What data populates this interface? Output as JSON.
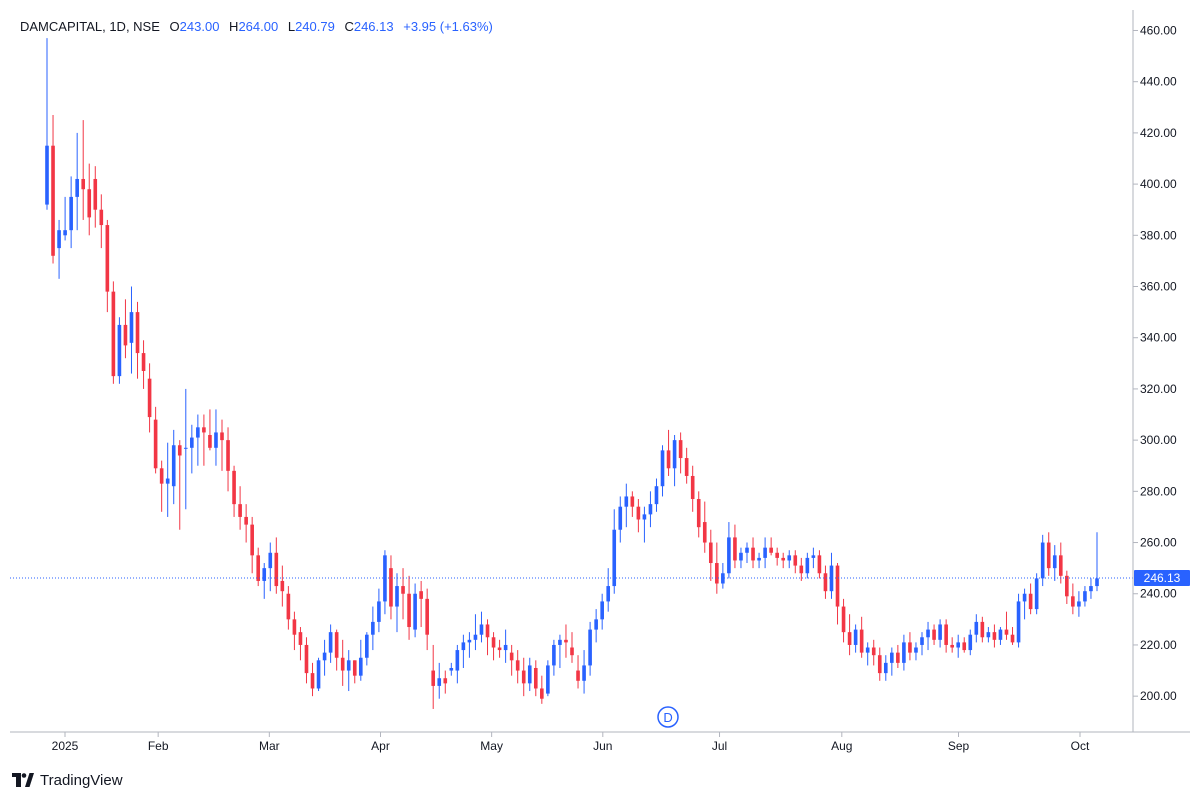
{
  "header": {
    "symbol": "DAMCAPITAL, 1D, NSE",
    "o_label": "O",
    "o_value": "243.00",
    "h_label": "H",
    "h_value": "264.00",
    "l_label": "L",
    "l_value": "240.79",
    "c_label": "C",
    "c_value": "246.13",
    "change": "+3.95 (+1.63%)"
  },
  "footer": {
    "brand": "TradingView",
    "logo_icon": "tradingview-logo-icon"
  },
  "event_marker": {
    "label": "D",
    "icon": "dividend-marker-icon"
  },
  "colors": {
    "up": "#2962ff",
    "down": "#f23645",
    "price_line": "#2962ff",
    "axis_text": "#131722",
    "grid": "#e0e3eb"
  },
  "chart_data": {
    "type": "candlestick",
    "ylim": [
      186,
      468
    ],
    "yticks": [
      "200.00",
      "220.00",
      "240.00",
      "260.00",
      "280.00",
      "300.00",
      "320.00",
      "340.00",
      "360.00",
      "380.00",
      "400.00",
      "420.00",
      "440.00",
      "460.00"
    ],
    "xticks": [
      "2025",
      "Feb",
      "Mar",
      "Apr",
      "May",
      "Jun",
      "Jul",
      "Aug",
      "Sep",
      "Oct"
    ],
    "last_price": 246.13,
    "last_price_label": "246.13",
    "ohlc": [
      [
        392,
        457,
        390,
        415
      ],
      [
        415,
        427,
        369,
        372
      ],
      [
        375,
        386,
        363,
        382
      ],
      [
        380,
        395,
        378,
        382
      ],
      [
        382,
        403,
        375,
        395
      ],
      [
        395,
        420,
        382,
        402
      ],
      [
        402,
        425,
        386,
        398
      ],
      [
        398,
        408,
        380,
        387
      ],
      [
        402,
        407,
        383,
        390
      ],
      [
        390,
        396,
        375,
        384
      ],
      [
        384,
        386,
        350,
        358
      ],
      [
        358,
        362,
        322,
        325
      ],
      [
        325,
        348,
        322,
        345
      ],
      [
        345,
        355,
        332,
        337
      ],
      [
        338,
        360,
        326,
        350
      ],
      [
        350,
        354,
        324,
        334
      ],
      [
        334,
        339,
        320,
        327
      ],
      [
        324,
        330,
        303,
        309
      ],
      [
        308,
        313,
        287,
        289
      ],
      [
        289,
        292,
        272,
        283
      ],
      [
        283,
        299,
        270,
        285
      ],
      [
        282,
        304,
        275,
        298
      ],
      [
        298,
        300,
        265,
        294
      ],
      [
        297,
        320,
        273,
        297
      ],
      [
        297,
        306,
        287,
        301
      ],
      [
        301,
        310,
        290,
        305
      ],
      [
        305,
        310,
        290,
        303
      ],
      [
        302,
        312,
        296,
        297
      ],
      [
        297,
        312,
        290,
        303
      ],
      [
        303,
        308,
        288,
        300
      ],
      [
        300,
        305,
        280,
        288
      ],
      [
        288,
        290,
        270,
        275
      ],
      [
        275,
        282,
        265,
        270
      ],
      [
        270,
        275,
        260,
        267
      ],
      [
        267,
        270,
        248,
        255
      ],
      [
        255,
        258,
        243,
        245
      ],
      [
        245,
        252,
        238,
        250
      ],
      [
        250,
        260,
        241,
        256
      ],
      [
        256,
        262,
        240,
        243
      ],
      [
        245,
        251,
        235,
        241
      ],
      [
        240,
        243,
        226,
        230
      ],
      [
        230,
        233,
        218,
        224
      ],
      [
        225,
        227,
        214,
        220
      ],
      [
        220,
        223,
        205,
        209
      ],
      [
        209,
        213,
        200,
        203
      ],
      [
        203,
        215,
        202,
        214
      ],
      [
        214,
        222,
        208,
        217
      ],
      [
        217,
        228,
        213,
        225
      ],
      [
        225,
        226,
        210,
        215
      ],
      [
        215,
        222,
        204,
        210
      ],
      [
        210,
        218,
        202,
        214
      ],
      [
        214,
        214,
        205,
        208
      ],
      [
        208,
        222,
        206,
        215
      ],
      [
        215,
        225,
        212,
        224
      ],
      [
        224,
        235,
        218,
        229
      ],
      [
        229,
        242,
        225,
        237
      ],
      [
        237,
        257,
        232,
        255
      ],
      [
        250,
        255,
        230,
        235
      ],
      [
        235,
        248,
        225,
        243
      ],
      [
        243,
        250,
        230,
        240
      ],
      [
        240,
        247,
        222,
        227
      ],
      [
        226,
        244,
        223,
        240
      ],
      [
        241,
        245,
        227,
        238
      ],
      [
        238,
        242,
        218,
        224
      ],
      [
        210,
        220,
        195,
        204
      ],
      [
        204,
        213,
        199,
        207
      ],
      [
        207,
        210,
        201,
        205
      ],
      [
        210,
        213,
        208,
        211
      ],
      [
        210,
        220,
        205,
        218
      ],
      [
        218,
        224,
        211,
        221
      ],
      [
        221,
        225,
        215,
        222
      ],
      [
        222,
        232,
        218,
        224
      ],
      [
        224,
        233,
        221,
        228
      ],
      [
        228,
        230,
        216,
        223
      ],
      [
        223,
        225,
        214,
        219
      ],
      [
        219,
        222,
        215,
        218
      ],
      [
        218,
        226,
        213,
        220
      ],
      [
        217,
        220,
        208,
        214
      ],
      [
        214,
        218,
        205,
        210
      ],
      [
        210,
        215,
        200,
        205
      ],
      [
        205,
        215,
        202,
        212
      ],
      [
        211,
        214,
        200,
        203
      ],
      [
        203,
        208,
        197,
        199
      ],
      [
        201,
        214,
        200,
        212
      ],
      [
        212,
        222,
        208,
        220
      ],
      [
        220,
        224,
        211,
        222
      ],
      [
        222,
        228,
        215,
        221
      ],
      [
        219,
        225,
        213,
        216
      ],
      [
        210,
        216,
        203,
        206
      ],
      [
        206,
        218,
        201,
        212
      ],
      [
        212,
        229,
        208,
        226
      ],
      [
        226,
        234,
        221,
        230
      ],
      [
        230,
        240,
        226,
        237
      ],
      [
        237,
        250,
        233,
        243
      ],
      [
        243,
        273,
        240,
        265
      ],
      [
        265,
        278,
        260,
        274
      ],
      [
        274,
        283,
        266,
        278
      ],
      [
        278,
        280,
        270,
        274
      ],
      [
        274,
        277,
        264,
        269
      ],
      [
        269,
        274,
        260,
        271
      ],
      [
        271,
        280,
        266,
        275
      ],
      [
        275,
        285,
        272,
        282
      ],
      [
        282,
        298,
        278,
        296
      ],
      [
        296,
        304,
        286,
        289
      ],
      [
        289,
        302,
        282,
        300
      ],
      [
        300,
        303,
        287,
        293
      ],
      [
        293,
        297,
        283,
        286
      ],
      [
        286,
        290,
        272,
        277
      ],
      [
        277,
        280,
        262,
        266
      ],
      [
        268,
        276,
        256,
        260
      ],
      [
        260,
        265,
        245,
        252
      ],
      [
        252,
        260,
        240,
        244
      ],
      [
        244,
        252,
        242,
        248
      ],
      [
        248,
        268,
        246,
        262
      ],
      [
        262,
        267,
        250,
        253
      ],
      [
        253,
        258,
        250,
        256
      ],
      [
        256,
        260,
        252,
        258
      ],
      [
        258,
        262,
        250,
        253
      ],
      [
        253,
        256,
        250,
        254
      ],
      [
        254,
        262,
        250,
        258
      ],
      [
        258,
        262,
        255,
        256
      ],
      [
        256,
        258,
        251,
        254
      ],
      [
        254,
        256,
        250,
        253
      ],
      [
        253,
        257,
        250,
        255
      ],
      [
        255,
        257,
        248,
        251
      ],
      [
        251,
        254,
        245,
        248
      ],
      [
        248,
        256,
        246,
        254
      ],
      [
        254,
        258,
        250,
        255
      ],
      [
        255,
        257,
        246,
        248
      ],
      [
        248,
        251,
        238,
        241
      ],
      [
        241,
        256,
        238,
        251
      ],
      [
        251,
        252,
        228,
        235
      ],
      [
        235,
        238,
        221,
        225
      ],
      [
        225,
        232,
        216,
        220
      ],
      [
        220,
        228,
        217,
        226
      ],
      [
        226,
        231,
        215,
        217
      ],
      [
        217,
        221,
        212,
        219
      ],
      [
        219,
        222,
        212,
        216
      ],
      [
        216,
        219,
        206,
        209
      ],
      [
        209,
        216,
        206,
        213
      ],
      [
        213,
        219,
        208,
        217
      ],
      [
        217,
        220,
        211,
        213
      ],
      [
        213,
        224,
        210,
        221
      ],
      [
        221,
        225,
        214,
        217
      ],
      [
        217,
        221,
        214,
        219
      ],
      [
        220,
        225,
        216,
        223
      ],
      [
        223,
        229,
        218,
        226
      ],
      [
        226,
        228,
        220,
        222
      ],
      [
        222,
        230,
        219,
        228
      ],
      [
        228,
        230,
        217,
        220
      ],
      [
        220,
        223,
        217,
        219
      ],
      [
        219,
        224,
        215,
        221
      ],
      [
        221,
        223,
        217,
        218
      ],
      [
        218,
        226,
        216,
        224
      ],
      [
        224,
        232,
        221,
        229
      ],
      [
        229,
        231,
        221,
        223
      ],
      [
        223,
        227,
        221,
        225
      ],
      [
        225,
        228,
        219,
        222
      ],
      [
        222,
        227,
        220,
        226
      ],
      [
        226,
        233,
        222,
        224
      ],
      [
        224,
        227,
        220,
        221
      ],
      [
        221,
        240,
        219,
        237
      ],
      [
        237,
        242,
        230,
        240
      ],
      [
        240,
        244,
        232,
        234
      ],
      [
        234,
        248,
        232,
        246
      ],
      [
        246,
        263,
        243,
        260
      ],
      [
        260,
        264,
        247,
        250
      ],
      [
        250,
        259,
        245,
        255
      ],
      [
        255,
        260,
        244,
        247
      ],
      [
        247,
        249,
        236,
        239
      ],
      [
        239,
        244,
        232,
        235
      ],
      [
        235,
        241,
        231,
        237
      ],
      [
        237,
        243,
        235,
        241
      ],
      [
        241,
        246,
        238,
        243
      ],
      [
        243,
        264,
        241,
        246
      ]
    ]
  }
}
